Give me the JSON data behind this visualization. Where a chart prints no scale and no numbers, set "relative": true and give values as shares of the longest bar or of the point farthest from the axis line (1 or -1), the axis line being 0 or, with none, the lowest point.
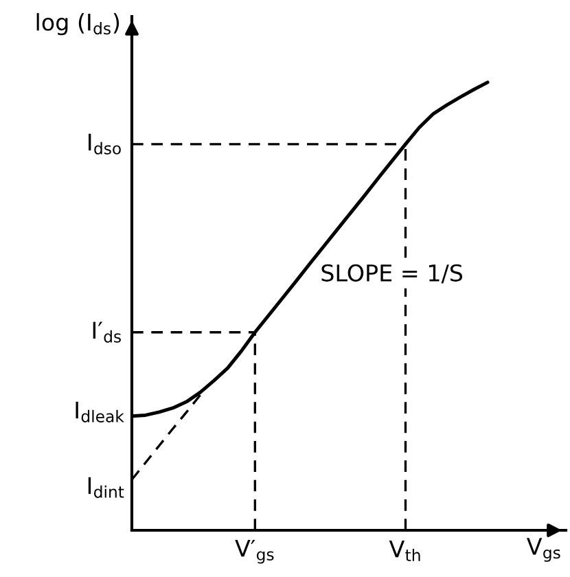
{
  "chart_data": {
    "type": "line",
    "relative": true,
    "xlabel": "V$_{gs}$",
    "ylabel": "log (I$_{ds}$)",
    "marker": "none",
    "categories": [
      null,
      null,
      null,
      null,
      null,
      null,
      null,
      null,
      null,
      "V′$_{gs}$",
      null,
      null,
      null,
      null,
      null,
      null,
      null,
      null,
      null,
      null,
      "V$_{th}$",
      null,
      null,
      null,
      null,
      null,
      null
    ],
    "series": [
      {
        "color": "#000000",
        "line_style": "solid",
        "values": [
          0.255,
          0.257,
          0.264,
          0.273,
          0.287,
          0.308,
          0.334,
          0.362,
          0.4,
          0.442,
          0.48,
          0.518,
          0.556,
          0.595,
          0.633,
          0.671,
          0.709,
          0.747,
          0.786,
          0.824,
          0.862,
          0.899,
          0.929,
          0.949,
          0.967,
          0.984,
          1.0
        ]
      },
      {
        "color": "#000000",
        "line_style": "dashed",
        "values": [
          0.113,
          0.151,
          0.189,
          0.227,
          0.264,
          0.302,
          null,
          null,
          null,
          null,
          null,
          null,
          null,
          null,
          null,
          null,
          null,
          null,
          null,
          null,
          null,
          null,
          null,
          null,
          null,
          null,
          null
        ]
      }
    ],
    "ref_lines": [
      {
        "axis": "y",
        "value": 0.862,
        "label": "I$_{dso}$",
        "color": "#000000",
        "line_style": "dashed"
      },
      {
        "axis": "y",
        "value": 0.442,
        "label": "I′$_{ds}$",
        "color": "#000000",
        "line_style": "dashed"
      },
      {
        "axis": "x",
        "value": "V$_{th}$",
        "color": "#000000",
        "line_style": "dashed"
      },
      {
        "axis": "x",
        "value": "V′$_{gs}$",
        "color": "#000000",
        "line_style": "dashed"
      }
    ],
    "annotations": [
      "I$_{dleak}$",
      "I$_{dint}$",
      "SLOPE = 1/S"
    ]
  }
}
